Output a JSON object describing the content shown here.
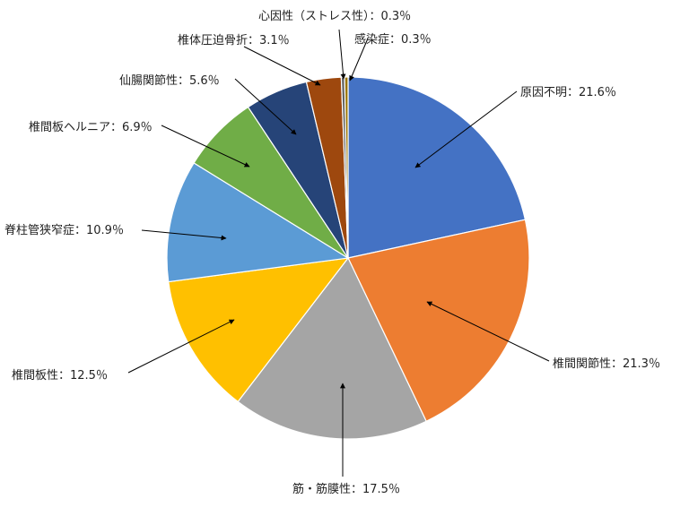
{
  "chart_data": {
    "type": "pie",
    "start": "top",
    "direction": "clockwise",
    "slices": [
      {
        "label": "原因不明：21.6％",
        "name": "原因不明",
        "value": 21.6,
        "color": "#4472C4"
      },
      {
        "label": "椎間関節性：21.3％",
        "name": "椎間関節性",
        "value": 21.3,
        "color": "#ED7D31"
      },
      {
        "label": "筋・筋膜性：17.5％",
        "name": "筋・筋膜性",
        "value": 17.5,
        "color": "#A5A5A5"
      },
      {
        "label": "椎間板性：12.5％",
        "name": "椎間板性",
        "value": 12.5,
        "color": "#FFC000"
      },
      {
        "label": "脊柱管狭窄症：10.9％",
        "name": "脊柱管狭窄症",
        "value": 10.9,
        "color": "#5B9BD5"
      },
      {
        "label": "椎間板ヘルニア：6.9％",
        "name": "椎間板ヘルニア",
        "value": 6.9,
        "color": "#70AD47"
      },
      {
        "label": "仙腸関節性：5.6％",
        "name": "仙腸関節性",
        "value": 5.6,
        "color": "#264478"
      },
      {
        "label": "椎体圧迫骨折：3.1％",
        "name": "椎体圧迫骨折",
        "value": 3.1,
        "color": "#9E480E"
      },
      {
        "label": "心因性（ストレス性）：0.3％",
        "name": "心因性（ストレス性）",
        "value": 0.3,
        "color": "#636363"
      },
      {
        "label": "感染症：0.3％",
        "name": "感染症",
        "value": 0.3,
        "color": "#997300"
      }
    ]
  }
}
